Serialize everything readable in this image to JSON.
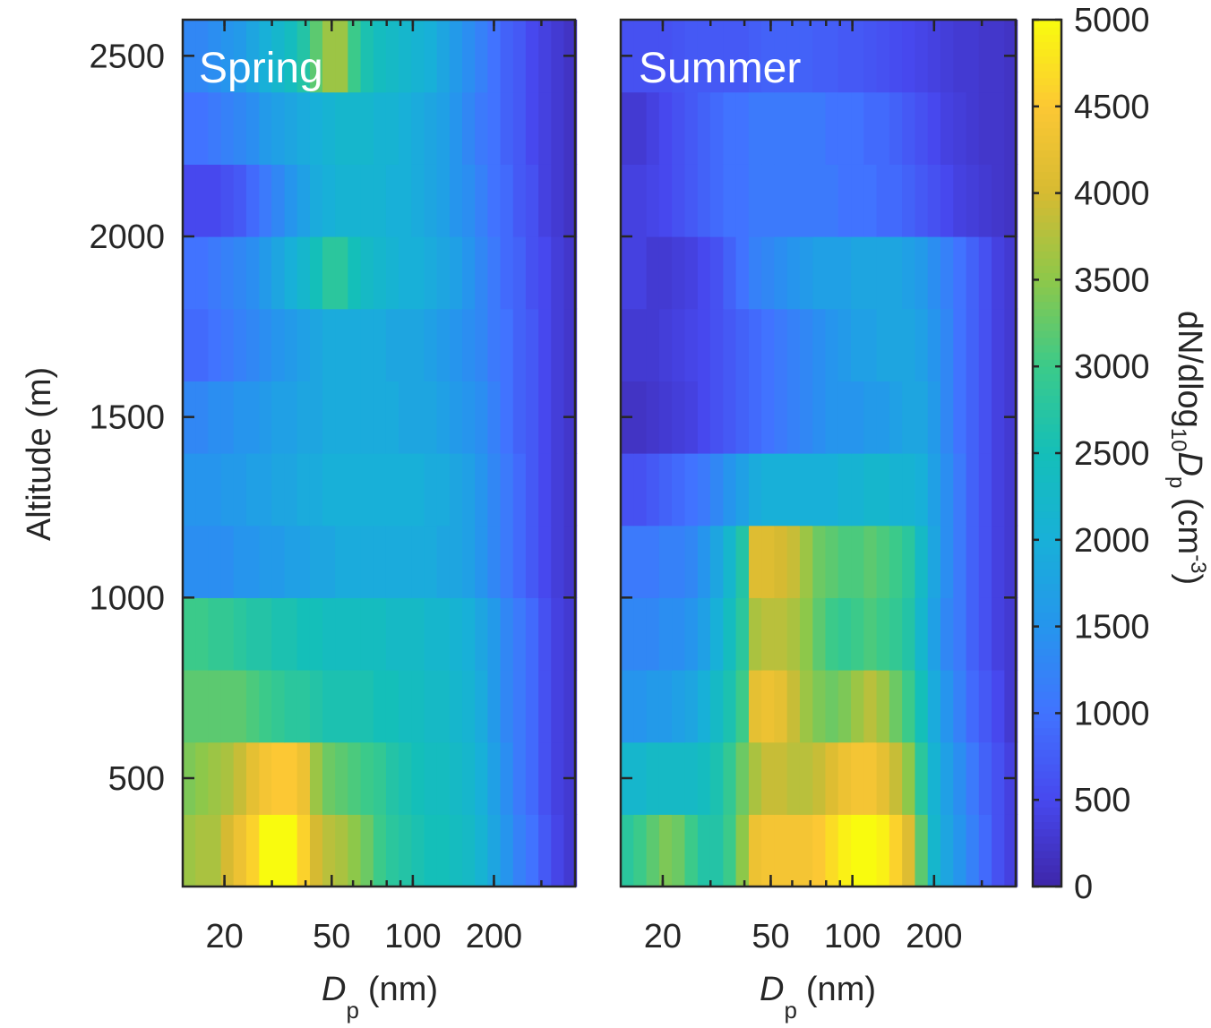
{
  "chart_data": {
    "type": "heatmap",
    "x_label_main": "D",
    "x_label_sub": "p",
    "x_label_unit": "(nm)",
    "y_label": "Altitude (m)",
    "x_scale": "log",
    "x_range_nm": [
      14,
      400
    ],
    "x_ticks": [
      20,
      50,
      100,
      200
    ],
    "x_tick_labels": [
      "20",
      "50",
      "100",
      "200"
    ],
    "y_range_m": [
      200,
      2600
    ],
    "y_ticks": [
      500,
      1000,
      1500,
      2000,
      2500
    ],
    "y_tick_labels": [
      "500",
      "1000",
      "1500",
      "2000",
      "2500"
    ],
    "altitude_bins_m": [
      200,
      400,
      600,
      800,
      1000,
      1200,
      1400,
      1600,
      1800,
      2000,
      2200,
      2400,
      2600
    ],
    "size_bins_nm": [
      14.0,
      15.6,
      17.4,
      19.4,
      21.6,
      24.1,
      26.9,
      29.9,
      33.4,
      37.2,
      41.5,
      46.2,
      51.5,
      57.4,
      64.0,
      71.4,
      79.5,
      88.6,
      98.8,
      110.1,
      122.7,
      136.8,
      152.5,
      170.0,
      189.5,
      211.2,
      235.4,
      262.4,
      292.5,
      326.0,
      363.4,
      405.0
    ],
    "colorbar": {
      "min": 0,
      "max": 5000,
      "ticks": [
        0,
        500,
        1000,
        1500,
        2000,
        2500,
        3000,
        3500,
        4000,
        4500,
        5000
      ],
      "tick_labels": [
        "0",
        "500",
        "1000",
        "1500",
        "2000",
        "2500",
        "3000",
        "3500",
        "4000",
        "4500",
        "5000"
      ],
      "label_main": "dN/dlog",
      "label_sub": "10",
      "label_mid": "D",
      "label_sub2": "p",
      "label_unit": " (cm",
      "label_sup": "-3",
      "label_close": ")",
      "colormap": "parula"
    },
    "panels": [
      {
        "title": "Spring",
        "rows": [
          {
            "alt_m": 300,
            "values": [
              3600,
              3700,
              3700,
              4000,
              4300,
              4600,
              5000,
              5000,
              5000,
              4600,
              4000,
              3800,
              3700,
              3500,
              3300,
              3000,
              2800,
              2700,
              2600,
              2500,
              2500,
              2400,
              2300,
              2100,
              1800,
              1500,
              1200,
              1000,
              700,
              450,
              300
            ]
          },
          {
            "alt_m": 500,
            "values": [
              3400,
              3500,
              3600,
              3700,
              3900,
              4200,
              4400,
              4500,
              4500,
              4300,
              3600,
              3300,
              3200,
              3100,
              3000,
              2900,
              2700,
              2600,
              2500,
              2400,
              2400,
              2300,
              2200,
              2000,
              1700,
              1400,
              1100,
              900,
              600,
              400,
              300
            ]
          },
          {
            "alt_m": 700,
            "values": [
              3200,
              3200,
              3200,
              3200,
              3200,
              3100,
              3000,
              2900,
              2800,
              2800,
              2700,
              2600,
              2600,
              2600,
              2600,
              2500,
              2500,
              2400,
              2400,
              2300,
              2300,
              2200,
              2100,
              1900,
              1600,
              1300,
              1100,
              900,
              600,
              400,
              300
            ]
          },
          {
            "alt_m": 900,
            "values": [
              3000,
              3000,
              2900,
              2900,
              2800,
              2700,
              2700,
              2600,
              2600,
              2500,
              2500,
              2400,
              2400,
              2400,
              2400,
              2400,
              2300,
              2300,
              2300,
              2200,
              2200,
              2100,
              2000,
              1800,
              1600,
              1300,
              1100,
              900,
              600,
              400,
              300
            ]
          },
          {
            "alt_m": 1100,
            "values": [
              1400,
              1400,
              1400,
              1400,
              1500,
              1500,
              1600,
              1600,
              1700,
              1700,
              1800,
              1800,
              1900,
              1900,
              1900,
              1900,
              1900,
              1900,
              1900,
              1900,
              1800,
              1800,
              1700,
              1500,
              1300,
              1100,
              900,
              700,
              500,
              350,
              250
            ]
          },
          {
            "alt_m": 1300,
            "values": [
              1500,
              1500,
              1500,
              1600,
              1600,
              1700,
              1700,
              1800,
              1800,
              1900,
              1900,
              2000,
              2000,
              2000,
              2000,
              2000,
              2000,
              2000,
              2000,
              1900,
              1900,
              1800,
              1700,
              1500,
              1300,
              1100,
              900,
              700,
              500,
              350,
              250
            ]
          },
          {
            "alt_m": 1500,
            "values": [
              1300,
              1300,
              1400,
              1400,
              1500,
              1500,
              1600,
              1700,
              1700,
              1800,
              1800,
              1900,
              1900,
              1900,
              1900,
              1900,
              1900,
              1800,
              1800,
              1800,
              1700,
              1600,
              1500,
              1400,
              1200,
              1000,
              800,
              700,
              500,
              350,
              250
            ]
          },
          {
            "alt_m": 1700,
            "values": [
              900,
              900,
              1000,
              1100,
              1200,
              1300,
              1400,
              1500,
              1600,
              1700,
              1800,
              1900,
              1900,
              1900,
              1900,
              1900,
              1800,
              1800,
              1800,
              1700,
              1600,
              1500,
              1400,
              1300,
              1100,
              1000,
              800,
              700,
              500,
              350,
              250
            ]
          },
          {
            "alt_m": 1900,
            "values": [
              1000,
              1000,
              1100,
              1200,
              1300,
              1400,
              1600,
              1800,
              2000,
              2200,
              2500,
              2800,
              2800,
              2500,
              2300,
              2200,
              2100,
              2000,
              2000,
              1900,
              1800,
              1700,
              1500,
              1300,
              1100,
              900,
              800,
              600,
              500,
              350,
              250
            ]
          },
          {
            "alt_m": 2100,
            "values": [
              500,
              500,
              500,
              600,
              700,
              900,
              1100,
              1300,
              1500,
              1700,
              1900,
              2000,
              2100,
              2100,
              2100,
              2100,
              2000,
              2000,
              1900,
              1800,
              1700,
              1500,
              1400,
              1200,
              1000,
              900,
              700,
              600,
              400,
              300,
              200
            ]
          },
          {
            "alt_m": 2300,
            "values": [
              1000,
              1000,
              1100,
              1200,
              1300,
              1400,
              1600,
              1700,
              1800,
              1900,
              2000,
              2100,
              2200,
              2200,
              2200,
              2100,
              2100,
              2000,
              1900,
              1800,
              1700,
              1500,
              1300,
              1100,
              1000,
              800,
              700,
              500,
              400,
              300,
              200
            ]
          },
          {
            "alt_m": 2500,
            "values": [
              1300,
              1300,
              1400,
              1500,
              1600,
              1800,
              2000,
              2200,
              2400,
              2700,
              3200,
              3600,
              3600,
              3000,
              2600,
              2400,
              2300,
              2200,
              2100,
              2000,
              1800,
              1600,
              1400,
              1200,
              1000,
              800,
              700,
              500,
              400,
              300,
              200
            ]
          }
        ]
      },
      {
        "title": "Summer",
        "rows": [
          {
            "alt_m": 300,
            "values": [
              2800,
              3000,
              3200,
              3400,
              3300,
              3000,
              2700,
              2700,
              3000,
              3500,
              4300,
              4400,
              4400,
              4400,
              4400,
              4500,
              4700,
              4900,
              5000,
              5000,
              4900,
              4600,
              4100,
              3200,
              2200,
              1800,
              1500,
              1200,
              900,
              600,
              400
            ]
          },
          {
            "alt_m": 500,
            "values": [
              2200,
              2200,
              2300,
              2300,
              2300,
              2300,
              2400,
              2600,
              2900,
              3300,
              3700,
              3900,
              3900,
              3800,
              3800,
              3900,
              4100,
              4300,
              4400,
              4400,
              4200,
              3900,
              3500,
              2800,
              2100,
              1700,
              1400,
              1100,
              800,
              600,
              400
            ]
          },
          {
            "alt_m": 700,
            "values": [
              1500,
              1500,
              1600,
              1600,
              1700,
              1800,
              2000,
              2300,
              2600,
              3000,
              4200,
              4300,
              4200,
              3900,
              3600,
              3400,
              3300,
              3400,
              3600,
              3800,
              3600,
              3300,
              3000,
              2500,
              1900,
              1500,
              1200,
              900,
              700,
              500,
              300
            ]
          },
          {
            "alt_m": 900,
            "values": [
              1300,
              1300,
              1300,
              1400,
              1400,
              1500,
              1700,
              2000,
              2400,
              2800,
              3700,
              3800,
              3800,
              3700,
              3500,
              3200,
              3000,
              2900,
              3000,
              3100,
              3000,
              2900,
              2700,
              2200,
              1700,
              1300,
              1100,
              800,
              600,
              400,
              300
            ]
          },
          {
            "alt_m": 1100,
            "values": [
              1100,
              1100,
              1100,
              1200,
              1200,
              1300,
              1500,
              1800,
              2200,
              2700,
              4100,
              4100,
              4000,
              3900,
              3600,
              3300,
              3200,
              3100,
              3100,
              3200,
              3100,
              3000,
              2800,
              2300,
              1800,
              1400,
              1100,
              800,
              600,
              400,
              300
            ]
          },
          {
            "alt_m": 1300,
            "values": [
              600,
              600,
              700,
              800,
              900,
              1000,
              1100,
              1300,
              1500,
              1700,
              1900,
              2000,
              2000,
              2000,
              2000,
              2000,
              2000,
              2100,
              2100,
              2200,
              2200,
              2100,
              2100,
              2000,
              1700,
              1400,
              1100,
              800,
              600,
              400,
              300
            ]
          },
          {
            "alt_m": 1500,
            "values": [
              200,
              200,
              250,
              300,
              350,
              400,
              500,
              600,
              700,
              800,
              900,
              1000,
              1100,
              1200,
              1300,
              1400,
              1500,
              1500,
              1500,
              1600,
              1600,
              1700,
              1800,
              1800,
              1600,
              1300,
              1000,
              800,
              600,
              400,
              300
            ]
          },
          {
            "alt_m": 1700,
            "values": [
              300,
              300,
              300,
              350,
              400,
              450,
              500,
              600,
              700,
              800,
              900,
              1000,
              1100,
              1200,
              1300,
              1400,
              1500,
              1600,
              1700,
              1700,
              1800,
              1800,
              1800,
              1700,
              1500,
              1300,
              1000,
              800,
              600,
              400,
              300
            ]
          },
          {
            "alt_m": 1900,
            "values": [
              400,
              400,
              300,
              300,
              350,
              400,
              500,
              600,
              800,
              1000,
              1200,
              1300,
              1400,
              1500,
              1600,
              1700,
              1700,
              1700,
              1800,
              1800,
              1800,
              1800,
              1700,
              1600,
              1400,
              1200,
              1000,
              800,
              600,
              400,
              300
            ]
          },
          {
            "alt_m": 2100,
            "values": [
              400,
              400,
              450,
              500,
              600,
              700,
              800,
              900,
              1000,
              1000,
              1100,
              1100,
              1100,
              1100,
              1100,
              1100,
              1100,
              1000,
              1000,
              1000,
              900,
              900,
              800,
              700,
              600,
              500,
              400,
              350,
              300,
              250,
              200
            ]
          },
          {
            "alt_m": 2300,
            "values": [
              300,
              300,
              400,
              500,
              600,
              700,
              800,
              900,
              1000,
              1000,
              1100,
              1100,
              1100,
              1100,
              1100,
              1100,
              1000,
              1000,
              1000,
              900,
              900,
              800,
              700,
              600,
              500,
              400,
              350,
              300,
              250,
              250,
              200
            ]
          },
          {
            "alt_m": 2500,
            "values": [
              600,
              600,
              600,
              600,
              650,
              700,
              700,
              700,
              700,
              700,
              750,
              800,
              800,
              800,
              800,
              750,
              750,
              700,
              700,
              650,
              600,
              550,
              500,
              450,
              400,
              350,
              300,
              300,
              250,
              250,
              200
            ]
          }
        ]
      }
    ]
  }
}
